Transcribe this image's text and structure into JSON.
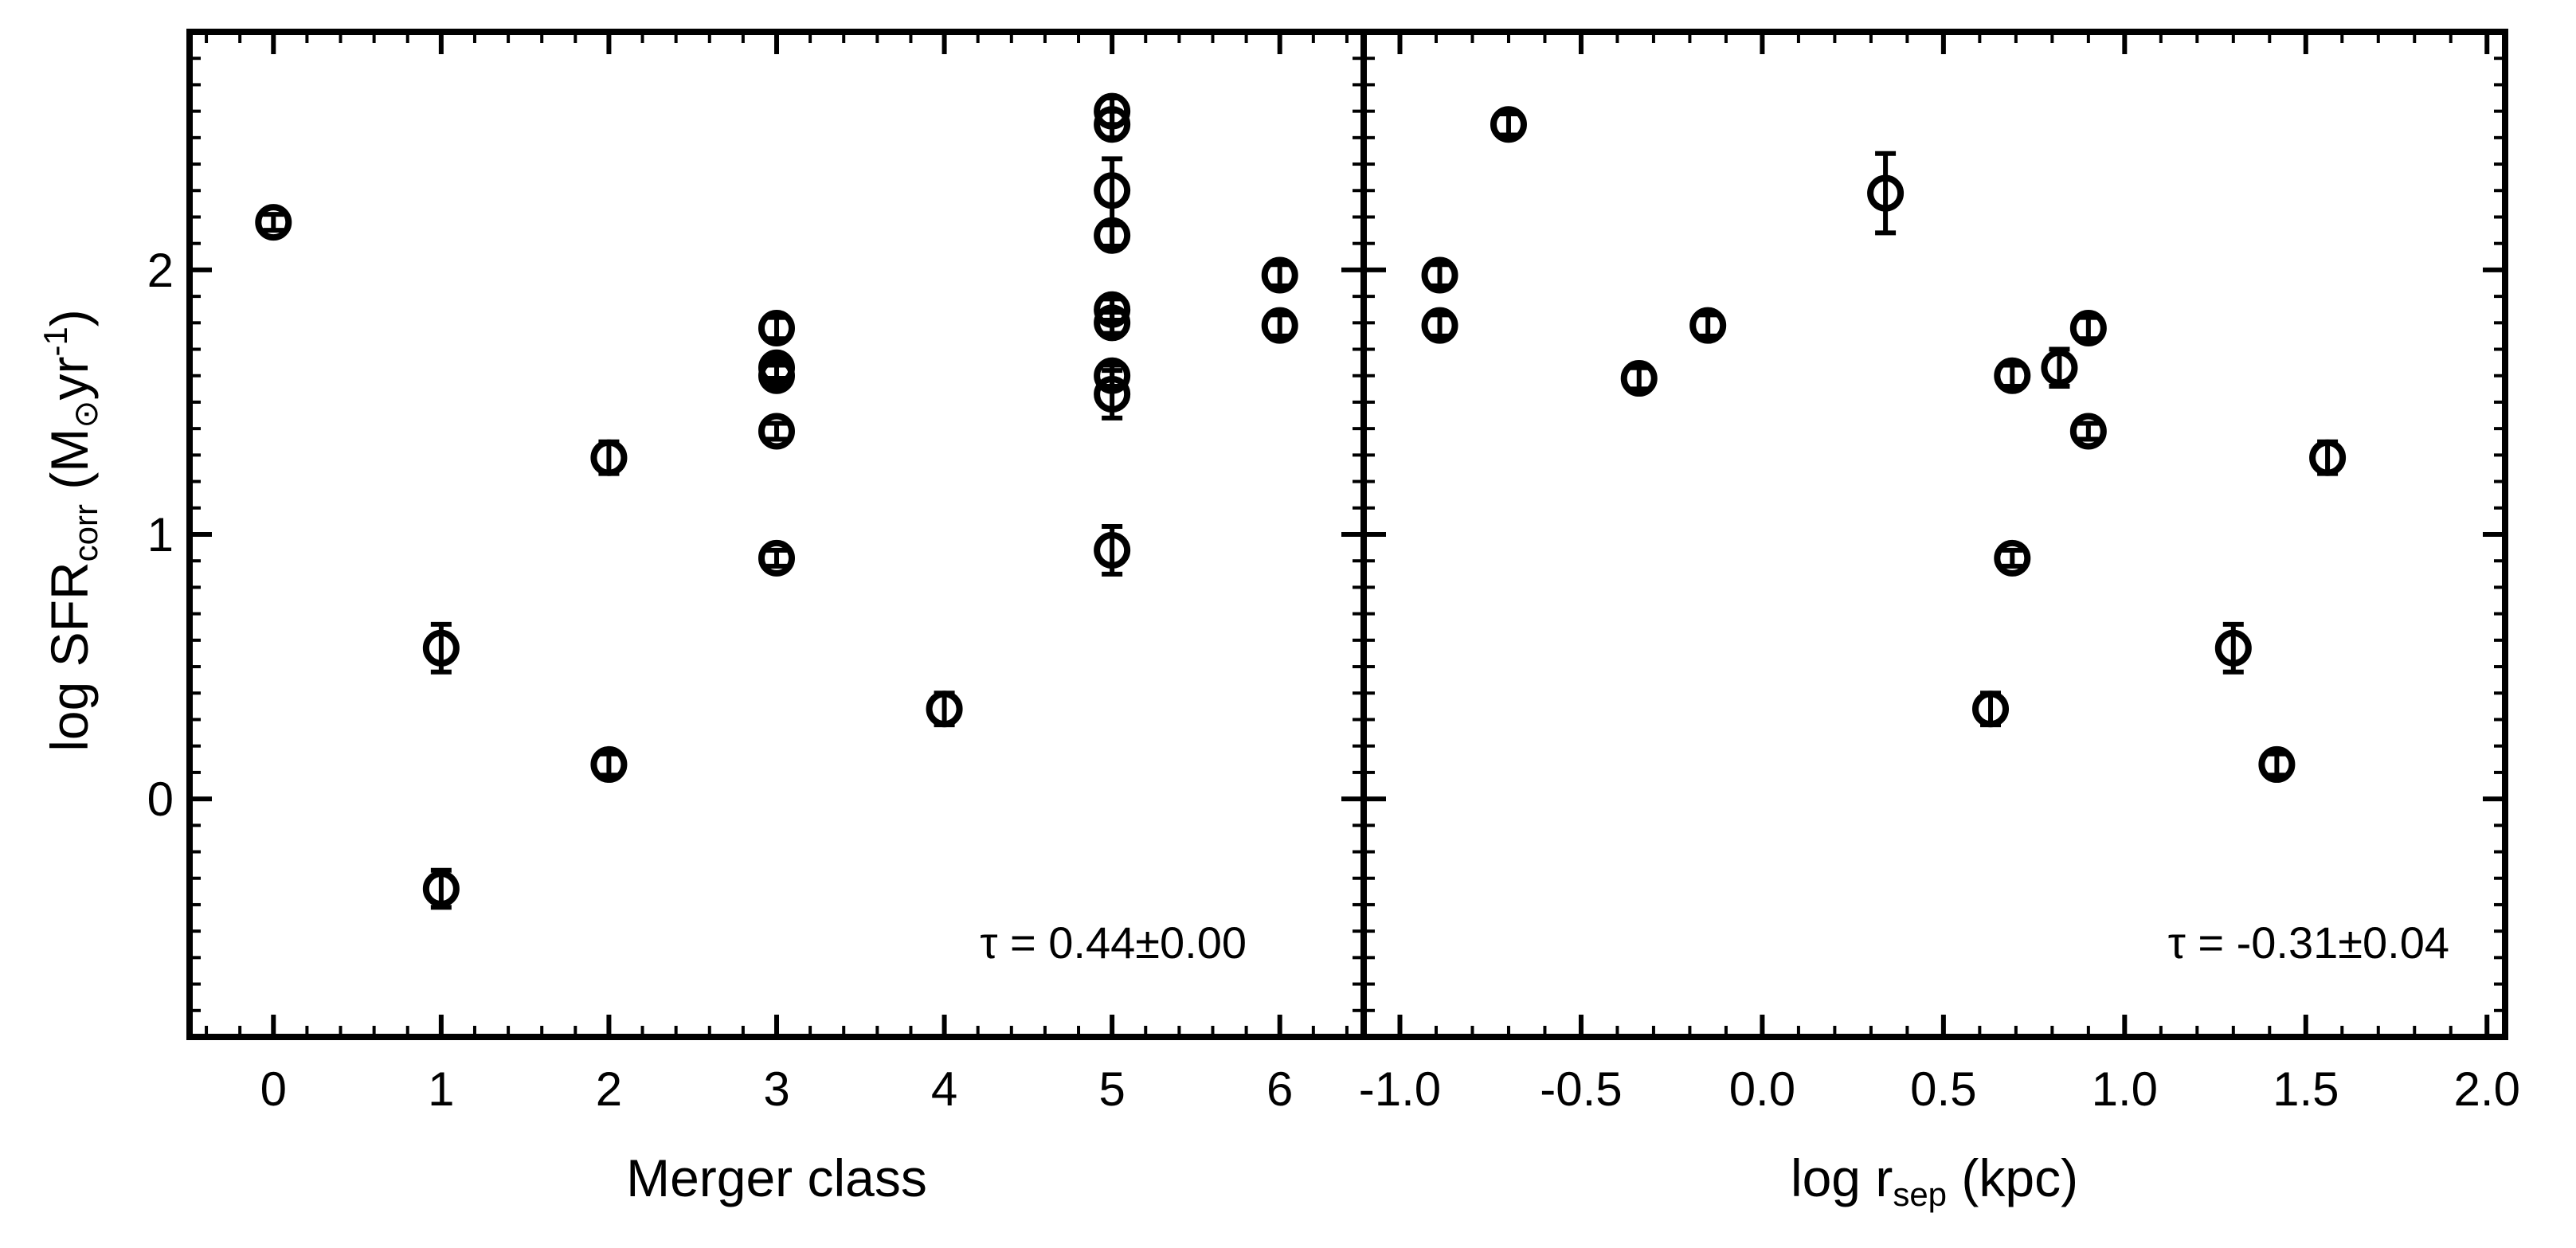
{
  "figure": {
    "ylabel_parts": {
      "prefix": "log SFR",
      "sub": "corr",
      "mid": " (M",
      "sun": "⊙",
      "unit": "yr",
      "sup": "-1",
      "close": ")"
    }
  },
  "chart_data": [
    {
      "type": "scatter",
      "panel": "left",
      "xlabel": "Merger class",
      "ylabel": "log SFRcorr (M⊙ yr-1)",
      "xlim": [
        -0.5,
        6.5
      ],
      "ylim": [
        -0.9,
        2.9
      ],
      "xticks": [
        0,
        1,
        2,
        3,
        4,
        5,
        6
      ],
      "xtick_labels": [
        "0",
        "1",
        "2",
        "3",
        "4",
        "5",
        "6"
      ],
      "yticks": [
        0,
        1,
        2
      ],
      "ytick_labels": [
        "0",
        "1",
        "2"
      ],
      "annotation": {
        "symbol": "τ",
        "text": " =  0.44±0.00"
      },
      "series": [
        {
          "marker": "open-circle",
          "points": [
            {
              "x": 0,
              "y": 2.18,
              "err": 0.03
            },
            {
              "x": 1,
              "y": 0.57,
              "err": 0.09
            },
            {
              "x": 1,
              "y": -0.34,
              "err": 0.07
            },
            {
              "x": 2,
              "y": 1.29,
              "err": 0.06
            },
            {
              "x": 2,
              "y": 0.13,
              "err": 0.04
            },
            {
              "x": 3,
              "y": 1.78,
              "err": 0.04
            },
            {
              "x": 3,
              "y": 1.63,
              "err": 0.04
            },
            {
              "x": 3,
              "y": 1.6,
              "err": 0.04
            },
            {
              "x": 3,
              "y": 1.39,
              "err": 0.03
            },
            {
              "x": 3,
              "y": 0.91,
              "err": 0.03
            },
            {
              "x": 4,
              "y": 0.34,
              "err": 0.06
            },
            {
              "x": 5,
              "y": 2.6,
              "err": 0.05
            },
            {
              "x": 5,
              "y": 2.55,
              "err": 0.05
            },
            {
              "x": 5,
              "y": 2.3,
              "err": 0.12
            },
            {
              "x": 5,
              "y": 2.13,
              "err": 0.04
            },
            {
              "x": 5,
              "y": 1.85,
              "err": 0.04
            },
            {
              "x": 5,
              "y": 1.8,
              "err": 0.04
            },
            {
              "x": 5,
              "y": 1.6,
              "err": 0.04
            },
            {
              "x": 5,
              "y": 1.53,
              "err": 0.09
            },
            {
              "x": 5,
              "y": 0.94,
              "err": 0.09
            },
            {
              "x": 6,
              "y": 1.98,
              "err": 0.04
            },
            {
              "x": 6,
              "y": 1.79,
              "err": 0.04
            }
          ]
        }
      ]
    },
    {
      "type": "scatter",
      "panel": "right",
      "xlabel_parts": {
        "prefix": "log r",
        "sub": "sep",
        "suffix": " (kpc)"
      },
      "xlabel": "log rsep (kpc)",
      "xlim": [
        -1.1,
        2.05
      ],
      "ylim": [
        -0.9,
        2.9
      ],
      "xticks": [
        -1.0,
        -0.5,
        0.0,
        0.5,
        1.0,
        1.5,
        2.0
      ],
      "xtick_labels": [
        "-1.0",
        "-0.5",
        "0.0",
        "0.5",
        "1.0",
        "1.5",
        "2.0"
      ],
      "yticks": [
        0,
        1,
        2
      ],
      "annotation": {
        "symbol": "τ",
        "text": " = -0.31±0.04"
      },
      "series": [
        {
          "marker": "open-circle",
          "points": [
            {
              "x": -0.89,
              "y": 1.98,
              "err": 0.04
            },
            {
              "x": -0.89,
              "y": 1.79,
              "err": 0.04
            },
            {
              "x": -0.7,
              "y": 2.55,
              "err": 0.04
            },
            {
              "x": -0.34,
              "y": 1.59,
              "err": 0.04
            },
            {
              "x": -0.15,
              "y": 1.79,
              "err": 0.04
            },
            {
              "x": 0.34,
              "y": 2.29,
              "err": 0.15
            },
            {
              "x": 0.63,
              "y": 0.34,
              "err": 0.06
            },
            {
              "x": 0.69,
              "y": 1.6,
              "err": 0.04
            },
            {
              "x": 0.69,
              "y": 0.91,
              "err": 0.03
            },
            {
              "x": 0.82,
              "y": 1.63,
              "err": 0.07
            },
            {
              "x": 0.9,
              "y": 1.78,
              "err": 0.04
            },
            {
              "x": 0.9,
              "y": 1.39,
              "err": 0.03
            },
            {
              "x": 1.3,
              "y": 0.57,
              "err": 0.09
            },
            {
              "x": 1.42,
              "y": 0.13,
              "err": 0.04
            },
            {
              "x": 1.56,
              "y": 1.29,
              "err": 0.06
            }
          ]
        }
      ]
    }
  ]
}
